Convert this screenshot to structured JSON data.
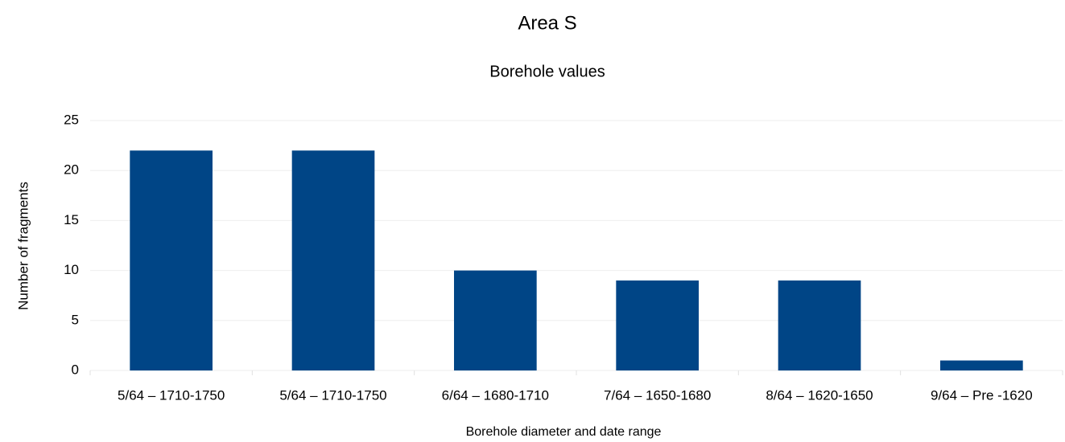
{
  "chart_data": {
    "type": "bar",
    "title": "Area S",
    "subtitle": "Borehole values",
    "x_label": "Borehole diameter and date range",
    "y_label": "Number of fragments",
    "categories": [
      "5/64 – 1710-1750",
      "5/64 – 1710-1750",
      "6/64 – 1680-1710",
      "7/64 – 1650-1680",
      "8/64 – 1620-1650",
      "9/64 – Pre -1620"
    ],
    "values": [
      22,
      22,
      10,
      9,
      9,
      1
    ],
    "color": "#004586",
    "ylim": [
      0,
      25
    ],
    "yticks": [
      0,
      5,
      10,
      15,
      20,
      25
    ],
    "grid": true
  }
}
